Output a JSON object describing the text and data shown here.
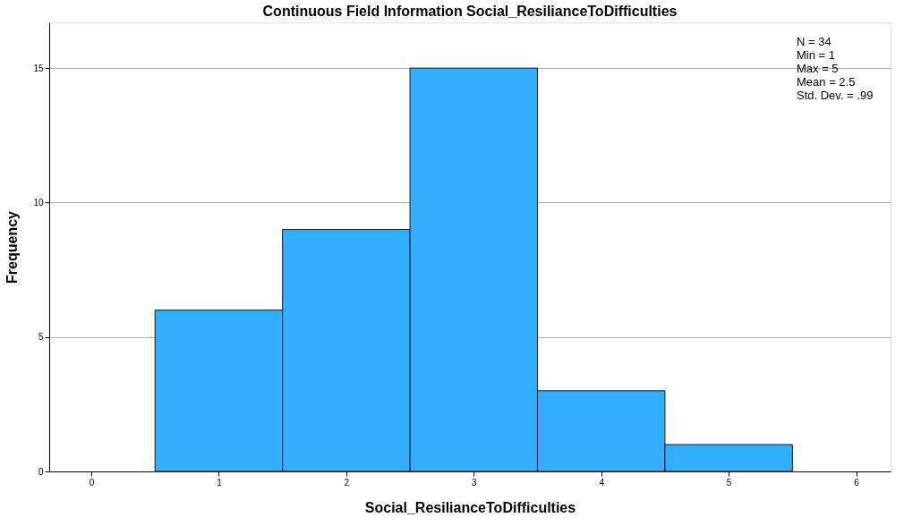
{
  "chart_data": {
    "type": "histogram",
    "title": "Continuous Field Information Social_ResilianceToDifficulties",
    "xlabel": "Social_ResilianceToDifficulties",
    "ylabel": "Frequency",
    "bins": [
      0.5,
      1.5,
      2.5,
      3.5,
      4.5,
      5.5
    ],
    "values": [
      6,
      9,
      15,
      3,
      1
    ],
    "color": "#33adff",
    "xlim": [
      -0.33,
      6.27
    ],
    "xticks": [
      0,
      1,
      2,
      3,
      4,
      5,
      6
    ],
    "ylim": [
      0,
      16.7
    ],
    "yticks": [
      0,
      5,
      10,
      15
    ],
    "grid": "y",
    "annotations": [
      "N = 34",
      "Min = 1",
      "Max = 5",
      "Mean = 2.5",
      "Std. Dev. = .99"
    ]
  }
}
